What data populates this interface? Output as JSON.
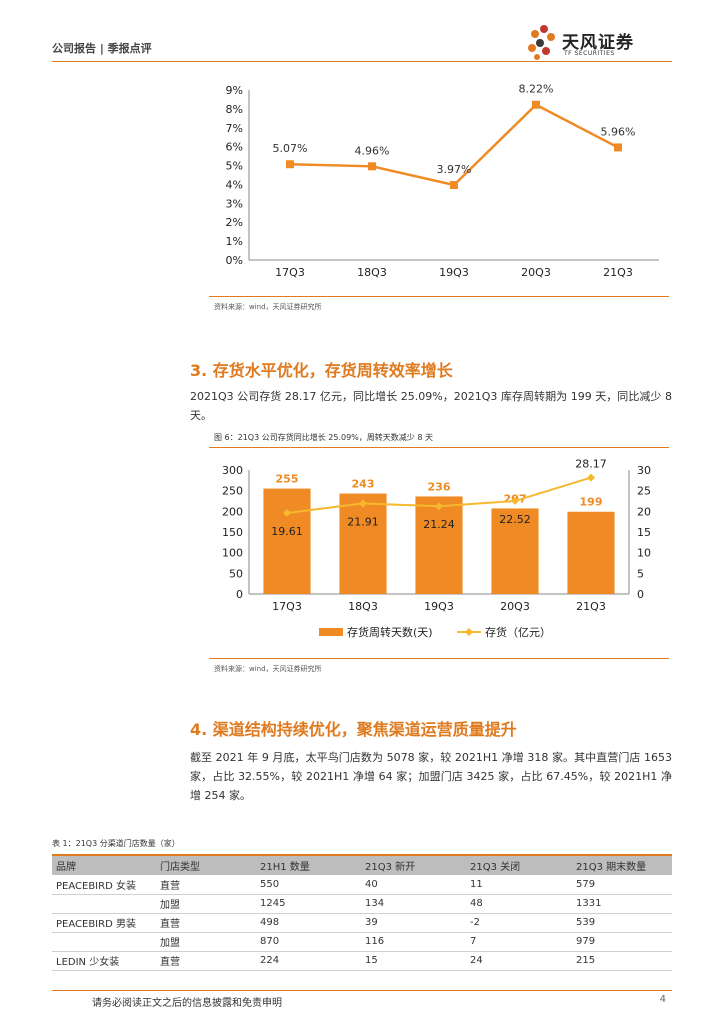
{
  "header": {
    "text": "公司报告 | 季报点评"
  },
  "logo": {
    "cn": "天风证券",
    "en": "TF SECURITIES",
    "colors": [
      "#e07a1f",
      "#c0392b",
      "#3a3a3a"
    ]
  },
  "chart_data": [
    {
      "type": "line",
      "title": "",
      "categories": [
        "17Q3",
        "18Q3",
        "19Q3",
        "20Q3",
        "21Q3"
      ],
      "values": [
        5.07,
        4.96,
        3.97,
        8.22,
        5.96
      ],
      "data_labels": [
        "5.07%",
        "4.96%",
        "3.97%",
        "8.22%",
        "5.96%"
      ],
      "yticks": [
        "0%",
        "1%",
        "2%",
        "3%",
        "4%",
        "5%",
        "6%",
        "7%",
        "8%",
        "9%"
      ],
      "ylim": [
        0,
        9
      ],
      "color": "#f08a24"
    },
    {
      "type": "bar",
      "title": "图 6：21Q3 公司存货同比增长 25.09%，周转天数减少 8 天",
      "categories": [
        "17Q3",
        "18Q3",
        "19Q3",
        "20Q3",
        "21Q3"
      ],
      "series": [
        {
          "name": "存货周转天数(天)",
          "type": "bar",
          "axis": "left",
          "values": [
            255,
            243,
            236,
            207,
            199
          ],
          "labels": [
            "255",
            "243",
            "236",
            "207",
            "199"
          ],
          "color": "#f08a24"
        },
        {
          "name": "存货（亿元）",
          "type": "line",
          "axis": "right",
          "values": [
            19.61,
            21.91,
            21.24,
            22.52,
            28.17
          ],
          "labels": [
            "19.61",
            "21.91",
            "21.24",
            "22.52",
            "28.17"
          ],
          "color": "#f5b82e"
        }
      ],
      "yticks_left": [
        "0",
        "50",
        "100",
        "150",
        "200",
        "250",
        "300"
      ],
      "yticks_right": [
        "0",
        "5",
        "10",
        "15",
        "20",
        "25",
        "30"
      ],
      "ylim_left": [
        0,
        300
      ],
      "ylim_right": [
        0,
        30
      ],
      "legend": "bottom"
    }
  ],
  "chart1_source": "资料来源：wind，天风证券研究所",
  "section3": {
    "title": "3. 存货水平优化，存货周转效率增长",
    "paragraph": "2021Q3 公司存货 28.17 亿元，同比增长 25.09%，2021Q3 库存周转期为 199 天，同比减少 8 天。"
  },
  "chart2_title": "图 6：21Q3 公司存货同比增长 25.09%，周转天数减少 8 天",
  "chart2_source": "资料来源：wind，天风证券研究所",
  "section4": {
    "title": "4. 渠道结构持续优化，聚焦渠道运营质量提升",
    "paragraph": "截至 2021 年 9 月底，太平鸟门店数为 5078 家，较 2021H1 净增 318 家。其中直营门店 1653 家，占比 32.55%，较 2021H1 净增 64 家；加盟门店 3425 家，占比 67.45%，较 2021H1 净增 254 家。"
  },
  "table": {
    "title": "表 1：21Q3 分渠道门店数量（家）",
    "headers": [
      "品牌",
      "门店类型",
      "21H1 数量",
      "21Q3 新开",
      "21Q3 关闭",
      "21Q3 期末数量"
    ],
    "rows": [
      [
        "PEACEBIRD 女装",
        "直营",
        "550",
        "40",
        "11",
        "579"
      ],
      [
        "",
        "加盟",
        "1245",
        "134",
        "48",
        "1331"
      ],
      [
        "PEACEBIRD 男装",
        "直营",
        "498",
        "39",
        "-2",
        "539"
      ],
      [
        "",
        "加盟",
        "870",
        "116",
        "7",
        "979"
      ],
      [
        "LEDIN 少女装",
        "直营",
        "224",
        "15",
        "24",
        "215"
      ]
    ]
  },
  "footer": {
    "text": "请务必阅读正文之后的信息披露和免责申明",
    "page": "4"
  }
}
